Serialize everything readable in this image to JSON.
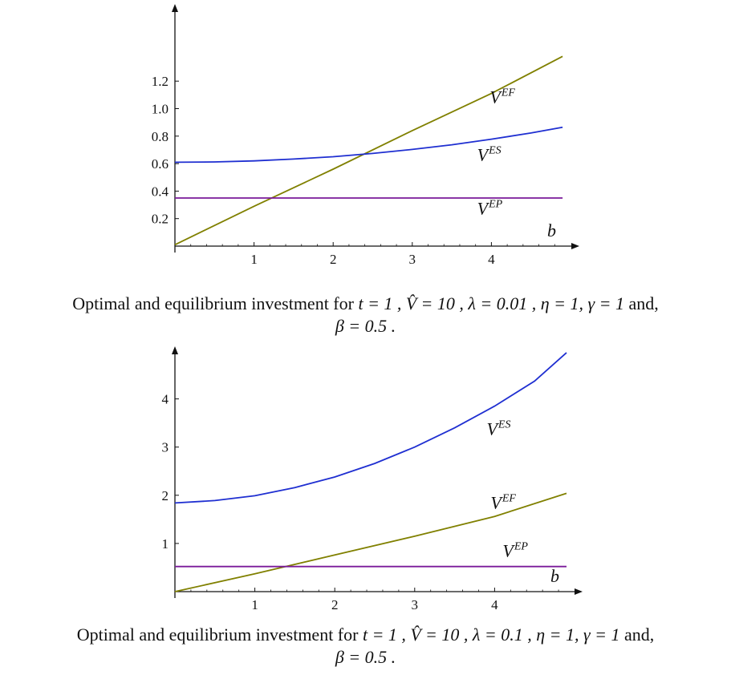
{
  "chart_data": [
    {
      "type": "line",
      "xlabel": "b",
      "xlim": [
        0,
        5
      ],
      "ylim": [
        0,
        1.4
      ],
      "x_ticks": [
        1,
        2,
        3,
        4
      ],
      "y_ticks": [
        0.2,
        0.4,
        0.6,
        0.8,
        1.0,
        1.2
      ],
      "y_tick_labels": [
        "0.2",
        "0.4",
        "0.6",
        "0.8",
        "1.0",
        "1.2"
      ],
      "series": [
        {
          "name": "V^EF",
          "label_main": "V",
          "label_sup": "EF",
          "color": "#808000",
          "x": [
            0,
            1,
            2,
            3,
            4,
            4.9
          ],
          "y": [
            0.01,
            0.29,
            0.56,
            0.84,
            1.11,
            1.38
          ]
        },
        {
          "name": "V^ES",
          "label_main": "V",
          "label_sup": "ES",
          "color": "#1f2fd1",
          "x": [
            0,
            0.5,
            1,
            1.5,
            2,
            2.5,
            3,
            3.5,
            4,
            4.5,
            4.9
          ],
          "y": [
            0.61,
            0.612,
            0.62,
            0.633,
            0.65,
            0.674,
            0.703,
            0.737,
            0.778,
            0.823,
            0.865
          ]
        },
        {
          "name": "V^EP",
          "label_main": "V",
          "label_sup": "EP",
          "color": "#7a1a9a",
          "x": [
            0,
            4.9
          ],
          "y": [
            0.35,
            0.35
          ]
        }
      ],
      "annotations": [
        {
          "series": "V^EF",
          "at_x": 3.98,
          "at_y": 1.04
        },
        {
          "series": "V^ES",
          "at_x": 3.82,
          "at_y": 0.62
        },
        {
          "series": "V^EP",
          "at_x": 3.82,
          "at_y": 0.23
        }
      ],
      "caption_line1_text": "Optimal and equilibrium investment for",
      "caption_line1_math": "t = 1 , V̂ = 10 , λ = 0.01 ,  η = 1,  γ = 1",
      "caption_line1_end": "and,",
      "caption_line2_math": "β = 0.5 ."
    },
    {
      "type": "line",
      "xlabel": "b",
      "xlim": [
        0,
        5
      ],
      "ylim": [
        0,
        5
      ],
      "x_ticks": [
        1,
        2,
        3,
        4
      ],
      "y_ticks": [
        1,
        2,
        3,
        4
      ],
      "y_tick_labels": [
        "1",
        "2",
        "3",
        "4"
      ],
      "series": [
        {
          "name": "V^ES",
          "label_main": "V",
          "label_sup": "ES",
          "color": "#1f2fd1",
          "x": [
            0,
            0.5,
            1,
            1.5,
            2,
            2.5,
            3,
            3.5,
            4,
            4.5,
            4.9
          ],
          "y": [
            1.84,
            1.89,
            1.99,
            2.16,
            2.38,
            2.66,
            3.0,
            3.4,
            3.85,
            4.37,
            4.96
          ]
        },
        {
          "name": "V^EF",
          "label_main": "V",
          "label_sup": "EF",
          "color": "#808000",
          "x": [
            0,
            1,
            2,
            3,
            4,
            4.9
          ],
          "y": [
            0.0,
            0.37,
            0.76,
            1.15,
            1.56,
            2.04
          ]
        },
        {
          "name": "V^EP",
          "label_main": "V",
          "label_sup": "EP",
          "color": "#7a1a9a",
          "x": [
            0,
            4.9
          ],
          "y": [
            0.52,
            0.52
          ]
        }
      ],
      "annotations": [
        {
          "series": "V^ES",
          "at_x": 3.9,
          "at_y": 3.25
        },
        {
          "series": "V^EF",
          "at_x": 3.95,
          "at_y": 1.72
        },
        {
          "series": "V^EP",
          "at_x": 4.1,
          "at_y": 0.72
        }
      ],
      "caption_line1_text": "Optimal and equilibrium investment for",
      "caption_line1_math": "t = 1 , V̂ = 10 , λ = 0.1 ,  η = 1,  γ = 1",
      "caption_line1_end": "and,",
      "caption_line2_math": "β = 0.5 ."
    }
  ]
}
